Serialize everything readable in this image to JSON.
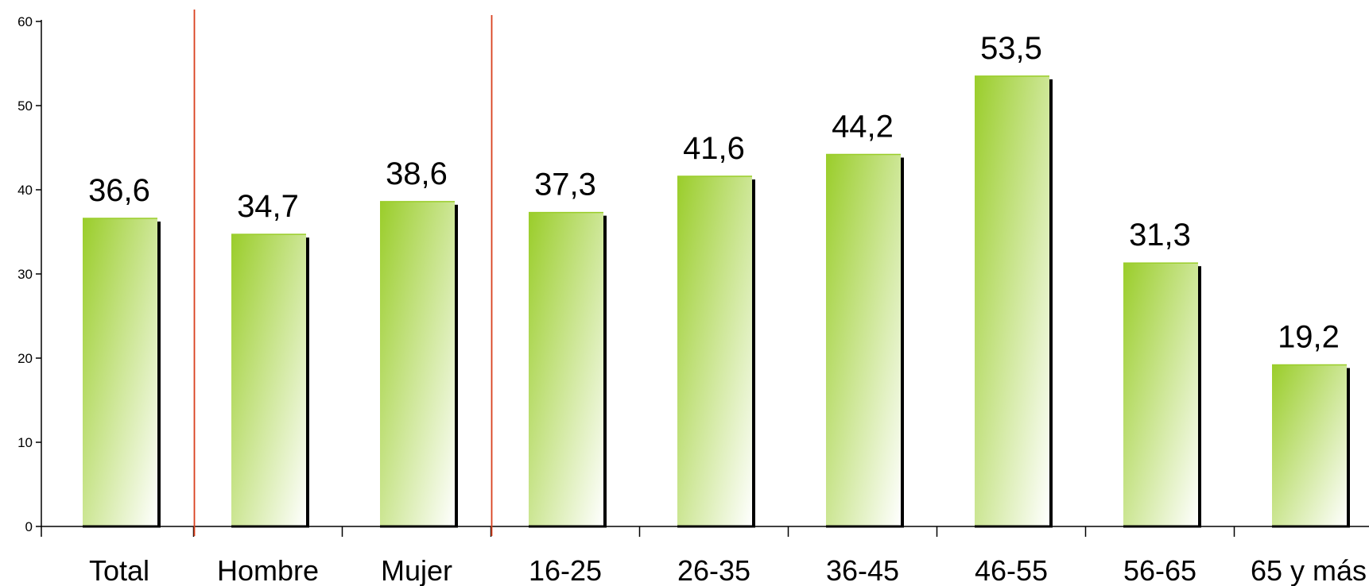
{
  "chart_data": {
    "type": "bar",
    "categories": [
      "Total",
      "Hombre",
      "Mujer",
      "16-25",
      "26-35",
      "36-45",
      "46-55",
      "56-65",
      "65 y más"
    ],
    "values": [
      36.6,
      34.7,
      38.6,
      37.3,
      41.6,
      44.2,
      53.5,
      31.3,
      19.2
    ],
    "value_labels": [
      "36,6",
      "34,7",
      "38,6",
      "37,3",
      "41,6",
      "44,2",
      "53,5",
      "31,3",
      "19,2"
    ],
    "ylim": [
      0,
      60
    ],
    "yticks": [
      "0",
      "10",
      "20",
      "30",
      "40",
      "50",
      "60"
    ],
    "group_separators_after_categories": [
      "Total",
      "Mujer"
    ],
    "grid": false,
    "legend": "none",
    "colors": {
      "bar_gradient_start": "#9acd2a",
      "bar_gradient_end": "#ffffff",
      "bar_shadow": "#000000",
      "separator": "#d9401e",
      "axis": "#000000"
    }
  }
}
